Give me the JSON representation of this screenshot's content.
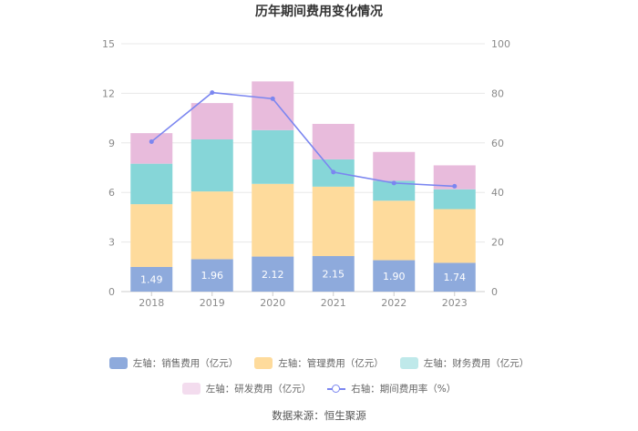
{
  "chart_data": {
    "type": "bar",
    "stacked": true,
    "title": "历年期间费用变化情况",
    "categories": [
      "2018",
      "2019",
      "2020",
      "2021",
      "2022",
      "2023"
    ],
    "series": [
      {
        "name": "左轴：销售费用（亿元）",
        "color": "#8eaadc",
        "axis": "left",
        "values": [
          1.49,
          1.96,
          2.12,
          2.15,
          1.9,
          1.74
        ],
        "labels": [
          "1.49",
          "1.96",
          "2.12",
          "2.15",
          "1.90",
          "1.74"
        ]
      },
      {
        "name": "左轴：管理费用（亿元）",
        "color": "#fedb9c",
        "axis": "left",
        "values": [
          3.8,
          4.1,
          4.4,
          4.2,
          3.6,
          3.25
        ]
      },
      {
        "name": "左轴：财务费用（亿元）",
        "color": "#86d6d8",
        "axis": "left",
        "values": [
          2.45,
          3.15,
          3.25,
          1.65,
          1.2,
          1.2
        ]
      },
      {
        "name": "左轴：研发费用（亿元）",
        "color": "#e8bbdc",
        "axis": "left",
        "values": [
          1.85,
          2.2,
          2.95,
          2.15,
          1.75,
          1.45
        ]
      },
      {
        "name": "右轴：期间费用率（%）",
        "color": "#7b86f0",
        "axis": "right",
        "type": "line",
        "values": [
          60.5,
          80.3,
          77.8,
          48.2,
          43.8,
          42.5
        ]
      }
    ],
    "yleft": {
      "min": 0,
      "max": 15,
      "ticks": [
        "0",
        "3",
        "6",
        "9",
        "12",
        "15"
      ]
    },
    "yright": {
      "min": 0,
      "max": 100,
      "ticks": [
        "0",
        "20",
        "40",
        "60",
        "80",
        "100"
      ]
    },
    "legend_position": "bottom"
  },
  "legend": {
    "row1": [
      "左轴：销售费用（亿元）",
      "左轴：管理费用（亿元）",
      "左轴：财务费用（亿元）"
    ],
    "row2": [
      "左轴：研发费用（亿元）",
      "右轴：期间费用率（%）"
    ]
  },
  "source": "数据来源：恒生聚源"
}
